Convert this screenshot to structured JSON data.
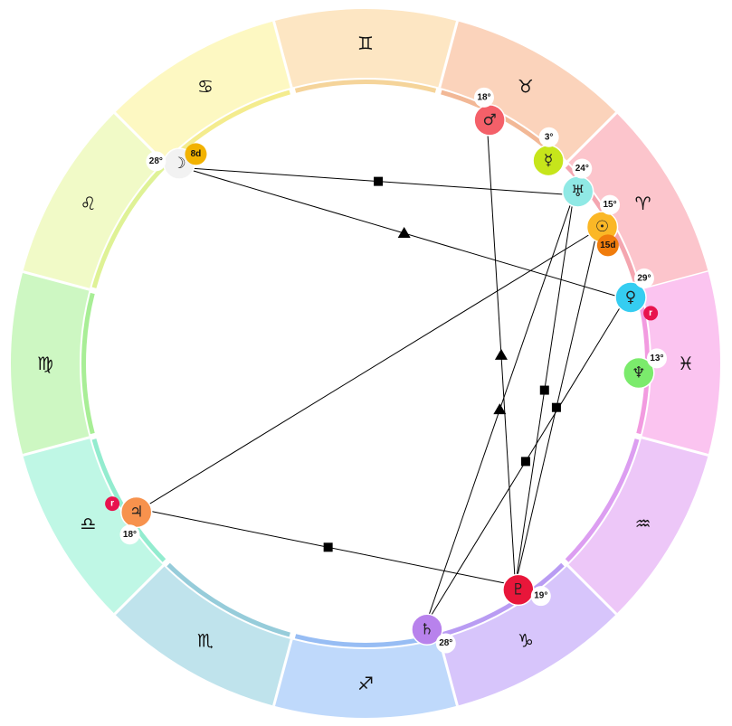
{
  "signs": [
    {
      "id": "aries",
      "glyph": "♈",
      "color": "#fcc5cc",
      "inner": "#f4a6b0"
    },
    {
      "id": "taurus",
      "glyph": "♉",
      "color": "#fbd3bb",
      "inner": "#f2b896"
    },
    {
      "id": "gemini",
      "glyph": "♊",
      "color": "#fde6c3",
      "inner": "#f5d49a"
    },
    {
      "id": "cancer",
      "glyph": "♋",
      "color": "#fdf8c2",
      "inner": "#f4ec8e"
    },
    {
      "id": "leo",
      "glyph": "♌",
      "color": "#f1fac7",
      "inner": "#dff296"
    },
    {
      "id": "virgo",
      "glyph": "♍",
      "color": "#cdf7c2",
      "inner": "#a8ee96"
    },
    {
      "id": "libra",
      "glyph": "♎",
      "color": "#bff7e5",
      "inner": "#93eccf"
    },
    {
      "id": "scorpio",
      "glyph": "♏",
      "color": "#bfe3ec",
      "inner": "#96ccda"
    },
    {
      "id": "sagittarius",
      "glyph": "♐",
      "color": "#bfd9fb",
      "inner": "#97bdf4"
    },
    {
      "id": "capricorn",
      "glyph": "♑",
      "color": "#d7c5fb",
      "inner": "#b99cf3"
    },
    {
      "id": "aquarius",
      "glyph": "♒",
      "color": "#edc7f8",
      "inner": "#dc9ef1"
    },
    {
      "id": "pisces",
      "glyph": "♓",
      "color": "#fbc4f0",
      "inner": "#f29be0"
    }
  ],
  "planets": [
    {
      "id": "sun",
      "glyph": "☉",
      "sign": "aries",
      "degree": "15°",
      "color": "#fbb726",
      "tag": "15d",
      "tag_color": "#f07c0c"
    },
    {
      "id": "moon",
      "glyph": "☽",
      "sign": "cancer",
      "degree": "28°",
      "color": "#f2f2f2",
      "tag": "8d",
      "tag_color": "#f2b200"
    },
    {
      "id": "mercury",
      "glyph": "☿",
      "sign": "taurus",
      "degree": "3°",
      "color": "#c6e51b"
    },
    {
      "id": "venus",
      "glyph": "♀",
      "sign": "pisces",
      "degree": "29°",
      "color": "#35cdf1",
      "retrograde": "r"
    },
    {
      "id": "mars",
      "glyph": "♂",
      "sign": "taurus",
      "degree": "18°",
      "color": "#f46069"
    },
    {
      "id": "jupiter",
      "glyph": "♃",
      "sign": "libra",
      "degree": "18°",
      "color": "#f7924d",
      "retrograde": "r"
    },
    {
      "id": "saturn",
      "glyph": "♄",
      "sign": "sagittarius",
      "degree": "28°",
      "color": "#b882ec"
    },
    {
      "id": "uranus",
      "glyph": "♅",
      "sign": "aries",
      "degree": "24°",
      "color": "#90e9e5"
    },
    {
      "id": "neptune",
      "glyph": "♆",
      "sign": "pisces",
      "degree": "13°",
      "color": "#7beb6c"
    },
    {
      "id": "pluto",
      "glyph": "♇",
      "sign": "capricorn",
      "degree": "19°",
      "color": "#e8163a"
    }
  ],
  "aspects": [
    {
      "from": "moon",
      "to": "uranus",
      "marker": "square"
    },
    {
      "from": "moon",
      "to": "venus",
      "marker": "triangle"
    },
    {
      "from": "sun",
      "to": "jupiter",
      "marker": "none"
    },
    {
      "from": "jupiter",
      "to": "pluto",
      "marker": "square"
    },
    {
      "from": "mars",
      "to": "pluto",
      "marker": "triangle"
    },
    {
      "from": "uranus",
      "to": "saturn",
      "marker": "triangle"
    },
    {
      "from": "uranus",
      "to": "pluto",
      "marker": "square"
    },
    {
      "from": "sun",
      "to": "pluto",
      "marker": "square"
    },
    {
      "from": "venus",
      "to": "saturn",
      "marker": "square"
    }
  ],
  "retrograde_color": "#e8134e"
}
